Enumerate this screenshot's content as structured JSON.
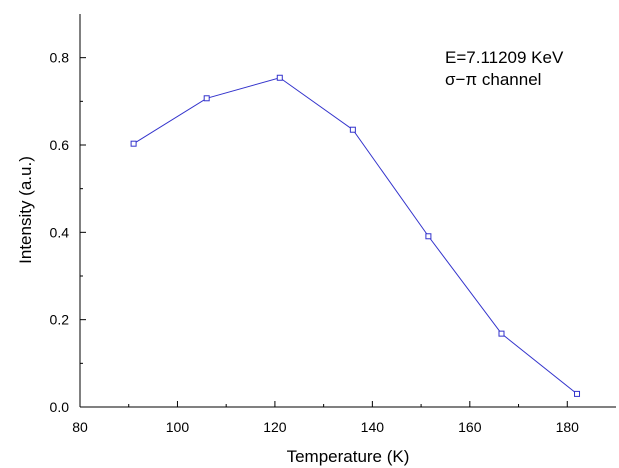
{
  "chart_data": {
    "type": "line",
    "xlabel": "Temperature (K)",
    "ylabel": "Intensity (a.u.)",
    "xlim": [
      80,
      190
    ],
    "ylim": [
      0.0,
      0.9
    ],
    "x_ticks": [
      80,
      100,
      120,
      140,
      160,
      180
    ],
    "x_tick_labels": [
      "80",
      "100",
      "120",
      "140",
      "160",
      "180"
    ],
    "y_ticks": [
      0.0,
      0.2,
      0.4,
      0.6,
      0.8
    ],
    "y_tick_labels": [
      "0.0",
      "0.2",
      "0.4",
      "0.6",
      "0.8"
    ],
    "grid": false,
    "annotations": [
      "E=7.11209 KeV",
      "σ−π channel"
    ],
    "series": [
      {
        "color": "#3333cc",
        "marker": "open-square",
        "x": [
          91,
          106,
          121,
          136,
          151.5,
          166.5,
          182
        ],
        "y": [
          0.603,
          0.707,
          0.754,
          0.635,
          0.391,
          0.168,
          0.03
        ]
      }
    ]
  }
}
